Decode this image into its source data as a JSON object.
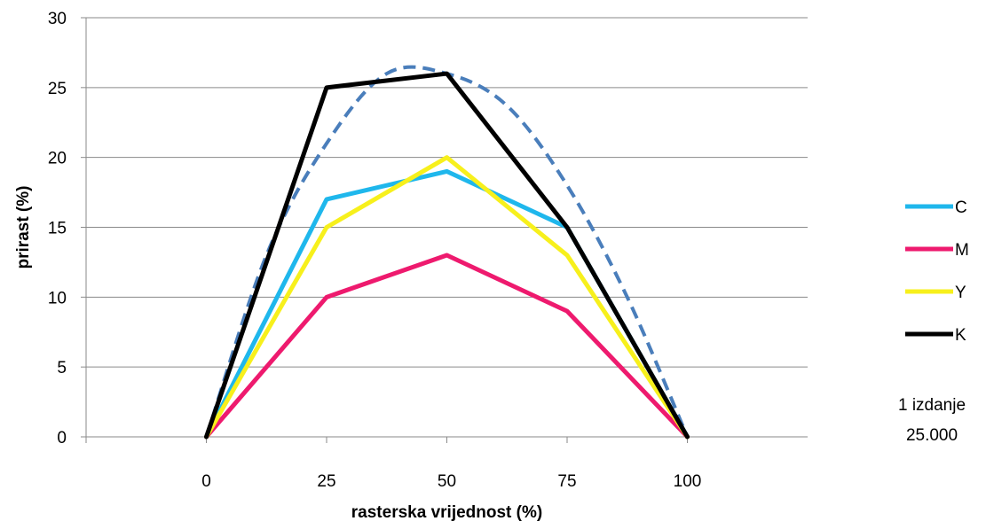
{
  "chart_data": {
    "type": "line",
    "x": [
      0,
      25,
      50,
      75,
      100
    ],
    "xlabel": "rasterska vrijednost (%)",
    "ylabel": "prirast (%)",
    "xlim": [
      0,
      100
    ],
    "ylim": [
      0,
      30
    ],
    "x_ticks": [
      "0",
      "25",
      "50",
      "75",
      "100"
    ],
    "y_ticks": [
      "0",
      "5",
      "10",
      "15",
      "20",
      "25",
      "30"
    ],
    "grid": "horizontal",
    "legend_position": "right",
    "series": [
      {
        "name": "C",
        "values": [
          0,
          17,
          19,
          15,
          0
        ],
        "color": "#1fb7ec"
      },
      {
        "name": "M",
        "values": [
          0,
          10,
          13,
          9,
          0
        ],
        "color": "#ee1a6e"
      },
      {
        "name": "Y",
        "values": [
          0,
          15,
          20,
          13,
          0
        ],
        "color": "#f7f01c"
      },
      {
        "name": "K",
        "values": [
          0,
          25,
          26,
          15,
          0
        ],
        "color": "#000000"
      }
    ],
    "reference_curve": {
      "style": "dashed",
      "color": "#4a7ebb",
      "x": [
        0,
        12.5,
        25,
        37.5,
        50,
        62.5,
        75,
        87.5,
        100
      ],
      "values": [
        0,
        13,
        21,
        26,
        26,
        23.7,
        18,
        10,
        0
      ]
    },
    "annotation": [
      "1 izdanje",
      "25.000"
    ]
  }
}
